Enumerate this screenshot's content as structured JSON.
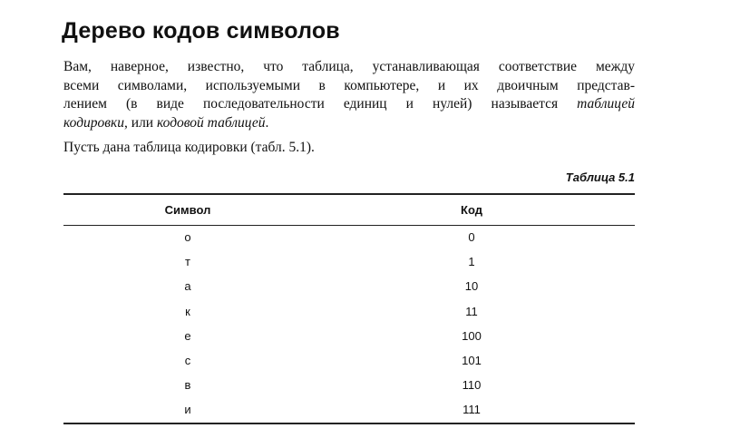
{
  "title": "Дерево кодов символов",
  "paragraph1": {
    "line1": "Вам, наверное, известно, что таблица, устанавливающая соответствие между",
    "line2": "всеми символами, используемыми в компьютере, и их двоичным представ-",
    "line3_a": "лением (в виде последовательности единиц и нулей) называется ",
    "line3_b": "таблицей",
    "line4_a": "кодировки",
    "line4_b": ", или ",
    "line4_c": "кодовой таблицей",
    "line4_d": "."
  },
  "paragraph2": "Пусть дана таблица кодировки (табл. 5.1).",
  "table": {
    "caption": "Таблица 5.1",
    "headers": [
      "Символ",
      "Код"
    ],
    "rows": [
      [
        "о",
        "0"
      ],
      [
        "т",
        "1"
      ],
      [
        "а",
        "10"
      ],
      [
        "к",
        "11"
      ],
      [
        "е",
        "100"
      ],
      [
        "с",
        "101"
      ],
      [
        "в",
        "110"
      ],
      [
        "и",
        "111"
      ]
    ]
  }
}
